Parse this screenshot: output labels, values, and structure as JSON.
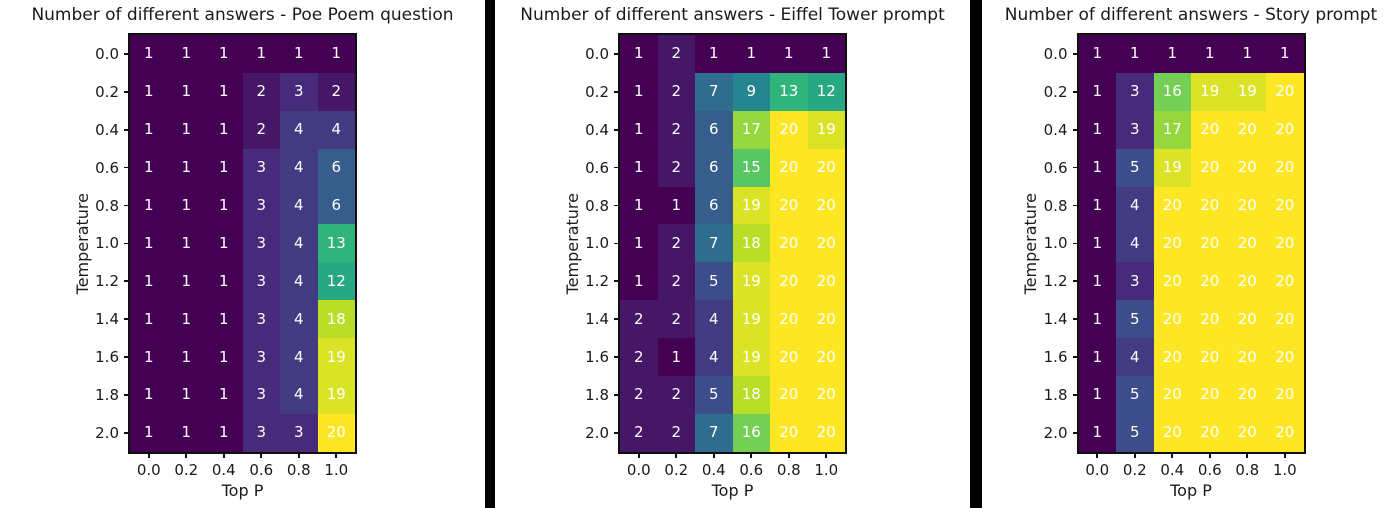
{
  "page": {
    "background": "#ffffff",
    "divider_color": "#000000",
    "text_color": "#1a1a1a",
    "annotation_color": "#ffffff",
    "colormap": "viridis",
    "viridis_stops": [
      [
        0.0,
        "#440154"
      ],
      [
        0.1,
        "#482878"
      ],
      [
        0.2,
        "#3e4989"
      ],
      [
        0.3,
        "#31688e"
      ],
      [
        0.4,
        "#26828e"
      ],
      [
        0.5,
        "#21918c"
      ],
      [
        0.6,
        "#28ae80"
      ],
      [
        0.7,
        "#46c06f"
      ],
      [
        0.8,
        "#7ad151"
      ],
      [
        0.9,
        "#bddf26"
      ],
      [
        1.0,
        "#fde725"
      ]
    ]
  },
  "chart_data": [
    {
      "type": "heatmap",
      "title": "Number of different answers - Poe Poem question",
      "xlabel": "Top P",
      "ylabel": "Temperature",
      "x_ticks": [
        "0.0",
        "0.2",
        "0.4",
        "0.6",
        "0.8",
        "1.0"
      ],
      "y_ticks": [
        "0.0",
        "0.2",
        "0.4",
        "0.6",
        "0.8",
        "1.0",
        "1.2",
        "1.4",
        "1.6",
        "1.8",
        "2.0"
      ],
      "color_range": [
        1,
        20
      ],
      "grid": false,
      "values": [
        [
          1,
          1,
          1,
          1,
          1,
          1
        ],
        [
          1,
          1,
          1,
          2,
          3,
          2
        ],
        [
          1,
          1,
          1,
          2,
          4,
          4
        ],
        [
          1,
          1,
          1,
          3,
          4,
          6
        ],
        [
          1,
          1,
          1,
          3,
          4,
          6
        ],
        [
          1,
          1,
          1,
          3,
          4,
          13
        ],
        [
          1,
          1,
          1,
          3,
          4,
          12
        ],
        [
          1,
          1,
          1,
          3,
          4,
          18
        ],
        [
          1,
          1,
          1,
          3,
          4,
          19
        ],
        [
          1,
          1,
          1,
          3,
          4,
          19
        ],
        [
          1,
          1,
          1,
          3,
          3,
          20
        ]
      ]
    },
    {
      "type": "heatmap",
      "title": "Number of different answers - Eiffel Tower prompt",
      "xlabel": "Top P",
      "ylabel": "Temperature",
      "x_ticks": [
        "0.0",
        "0.2",
        "0.4",
        "0.6",
        "0.8",
        "1.0"
      ],
      "y_ticks": [
        "0.0",
        "0.2",
        "0.4",
        "0.6",
        "0.8",
        "1.0",
        "1.2",
        "1.4",
        "1.6",
        "1.8",
        "2.0"
      ],
      "color_range": [
        1,
        20
      ],
      "grid": false,
      "values": [
        [
          1,
          2,
          1,
          1,
          1,
          1
        ],
        [
          1,
          2,
          7,
          9,
          13,
          12
        ],
        [
          1,
          2,
          6,
          17,
          20,
          19
        ],
        [
          1,
          2,
          6,
          15,
          20,
          20
        ],
        [
          1,
          1,
          6,
          19,
          20,
          20
        ],
        [
          1,
          2,
          7,
          18,
          20,
          20
        ],
        [
          1,
          2,
          5,
          19,
          20,
          20
        ],
        [
          2,
          2,
          4,
          19,
          20,
          20
        ],
        [
          2,
          1,
          4,
          19,
          20,
          20
        ],
        [
          2,
          2,
          5,
          18,
          20,
          20
        ],
        [
          2,
          2,
          7,
          16,
          20,
          20
        ]
      ]
    },
    {
      "type": "heatmap",
      "title": "Number of different answers - Story prompt",
      "xlabel": "Top P",
      "ylabel": "Temperature",
      "x_ticks": [
        "0.0",
        "0.2",
        "0.4",
        "0.6",
        "0.8",
        "1.0"
      ],
      "y_ticks": [
        "0.0",
        "0.2",
        "0.4",
        "0.6",
        "0.8",
        "1.0",
        "1.2",
        "1.4",
        "1.6",
        "1.8",
        "2.0"
      ],
      "color_range": [
        1,
        20
      ],
      "grid": false,
      "values": [
        [
          1,
          1,
          1,
          1,
          1,
          1
        ],
        [
          1,
          3,
          16,
          19,
          19,
          20
        ],
        [
          1,
          3,
          17,
          20,
          20,
          20
        ],
        [
          1,
          5,
          19,
          20,
          20,
          20
        ],
        [
          1,
          4,
          20,
          20,
          20,
          20
        ],
        [
          1,
          4,
          20,
          20,
          20,
          20
        ],
        [
          1,
          3,
          20,
          20,
          20,
          20
        ],
        [
          1,
          5,
          20,
          20,
          20,
          20
        ],
        [
          1,
          4,
          20,
          20,
          20,
          20
        ],
        [
          1,
          5,
          20,
          20,
          20,
          20
        ],
        [
          1,
          5,
          20,
          20,
          20,
          20
        ]
      ]
    }
  ]
}
